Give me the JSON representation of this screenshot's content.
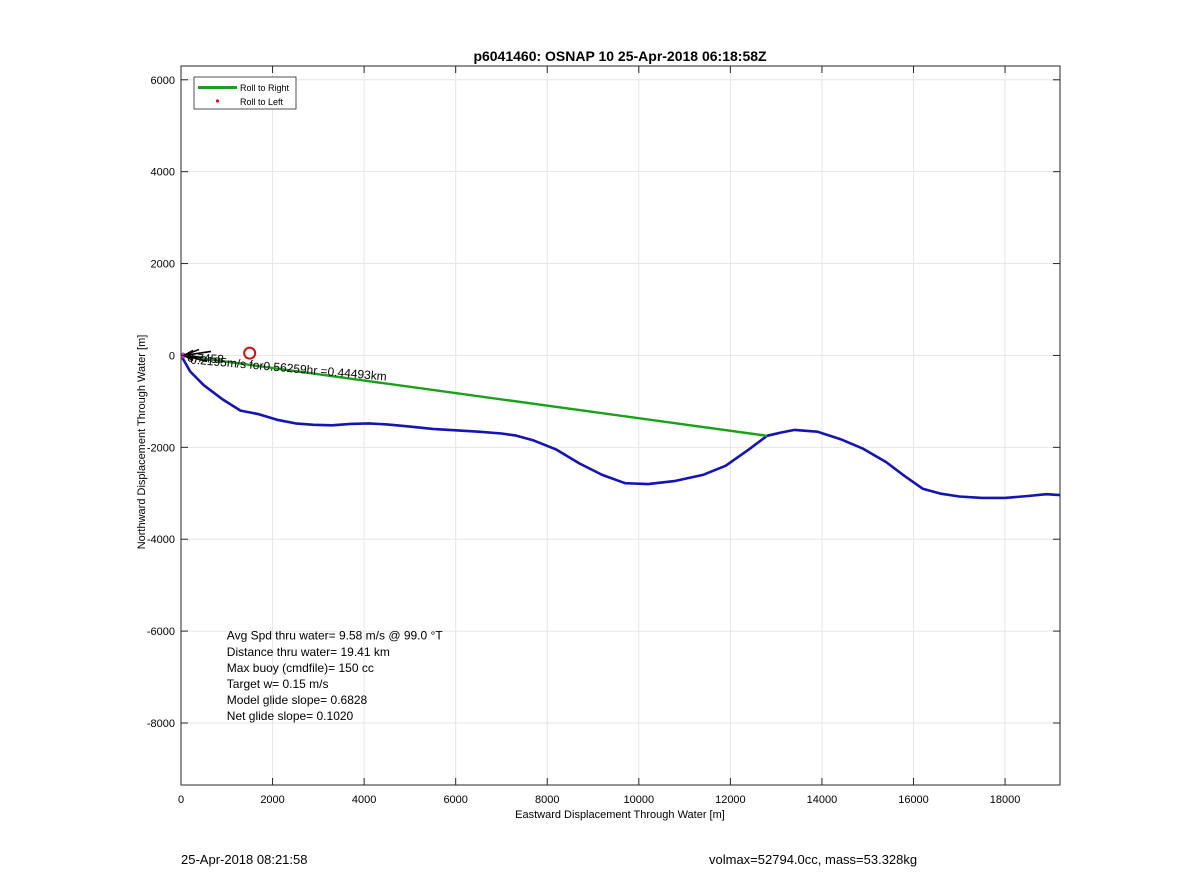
{
  "footer": {
    "timestamp": "25-Apr-2018 08:21:58",
    "summary": "volmax=52794.0cc, mass=53.328kg"
  },
  "chart_data": {
    "type": "line",
    "title": "p6041460: OSNAP 10 25-Apr-2018 06:18:58Z",
    "xlabel": "Eastward Displacement Through Water [m]",
    "ylabel": "Northward Displacement Through Water [m]",
    "xlim": [
      0,
      19200
    ],
    "ylim": [
      -9350,
      6300
    ],
    "xticks": [
      0,
      2000,
      4000,
      6000,
      8000,
      10000,
      12000,
      14000,
      16000,
      18000
    ],
    "yticks": [
      -8000,
      -6000,
      -4000,
      -2000,
      0,
      2000,
      4000,
      6000
    ],
    "grid": true,
    "legend_placement": "top-left",
    "legend": [
      {
        "label": "Roll to Right",
        "color": "#1aa01a",
        "style": "line"
      },
      {
        "label": "Roll to Left",
        "color": "#dd1111",
        "style": "dot"
      }
    ],
    "colors": {
      "track": "#1414b4",
      "green": "#1aa01a",
      "red": "#cc1111",
      "magenta": "#cc33cc"
    },
    "series": [
      {
        "x": [
          0,
          200,
          500,
          900,
          1300,
          1700,
          2100,
          2500,
          2900,
          3300,
          3700,
          4100,
          4500,
          5000,
          5500,
          6000,
          6500,
          7000,
          7300,
          7700,
          8200,
          8700,
          9200,
          9700,
          10200,
          10800,
          11400,
          11900,
          12400,
          12800,
          13100,
          13400,
          13900,
          14400,
          14900,
          15400,
          15800,
          16200,
          16600,
          17000,
          17500,
          18000,
          18500,
          18900,
          19200
        ],
        "y": [
          0,
          -350,
          -650,
          -950,
          -1200,
          -1280,
          -1400,
          -1480,
          -1510,
          -1520,
          -1490,
          -1480,
          -1500,
          -1550,
          -1600,
          -1630,
          -1660,
          -1700,
          -1740,
          -1850,
          -2050,
          -2350,
          -2600,
          -2780,
          -2800,
          -2730,
          -2600,
          -2400,
          -2050,
          -1750,
          -1680,
          -1620,
          -1660,
          -1820,
          -2030,
          -2320,
          -2620,
          -2900,
          -3010,
          -3070,
          -3100,
          -3100,
          -3060,
          -3020,
          -3040
        ]
      },
      {
        "x": [
          0,
          12800
        ],
        "y": [
          0,
          -1750
        ]
      }
    ],
    "markers": [
      {
        "x": 1500,
        "y": 50
      }
    ],
    "annotations": [
      {
        "text": "Avg Spd thru water=  9.58 m/s @  99.0 °T",
        "x": 1000,
        "y": -6100
      },
      {
        "text": "Distance thru water= 19.41 km",
        "x": 1000,
        "y": -6450
      },
      {
        "text": "Max buoy (cmdfile)= 150 cc",
        "x": 1000,
        "y": -6800
      },
      {
        "text": "Target w= 0.15 m/s",
        "x": 1000,
        "y": -7150
      },
      {
        "text": "Model glide slope= 0.6828",
        "x": 1000,
        "y": -7500
      },
      {
        "text": "Net glide slope= 0.1020",
        "x": 1000,
        "y": -7850
      }
    ],
    "arrow_labels": [
      {
        "text": "0.2195m/s for0.56259hr =0.44493km",
        "x": 50,
        "y": -100
      },
      {
        "text": "0.7458",
        "x": 50,
        "y": -100
      }
    ]
  }
}
